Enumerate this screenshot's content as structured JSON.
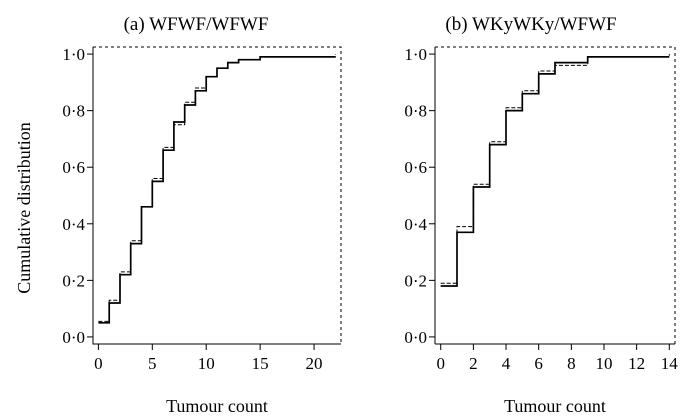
{
  "figure": {
    "ylabel": "Cumulative distribution",
    "xlabel": "Tumour count"
  },
  "chart_data": [
    {
      "type": "line",
      "title": "(a) WFWF/WFWF",
      "xlabel": "Tumour count",
      "ylabel": "Cumulative distribution",
      "xlim": [
        -0.5,
        22.5
      ],
      "ylim": [
        -0.025,
        1.025
      ],
      "xticks": [
        0,
        5,
        10,
        15,
        20
      ],
      "yticks": [
        0.0,
        0.2,
        0.4,
        0.6,
        0.8,
        1.0
      ],
      "ytick_labels": [
        "0·0",
        "0·2",
        "0·4",
        "0·6",
        "0·8",
        "1·0"
      ],
      "step": true,
      "series": [
        {
          "style": "solid",
          "x": [
            0,
            1,
            2,
            3,
            4,
            5,
            6,
            7,
            8,
            9,
            10,
            11,
            12,
            13,
            15,
            22
          ],
          "y": [
            0.05,
            0.12,
            0.22,
            0.33,
            0.46,
            0.55,
            0.66,
            0.76,
            0.82,
            0.87,
            0.92,
            0.95,
            0.97,
            0.98,
            0.99,
            0.99
          ]
        },
        {
          "style": "dashed",
          "x": [
            0,
            1,
            2,
            3,
            4,
            5,
            6,
            7,
            8,
            9,
            10,
            11,
            12,
            13,
            15,
            22
          ],
          "y": [
            0.055,
            0.13,
            0.23,
            0.34,
            0.46,
            0.56,
            0.67,
            0.75,
            0.83,
            0.88,
            0.92,
            0.95,
            0.97,
            0.98,
            0.99,
            1.0
          ]
        }
      ]
    },
    {
      "type": "line",
      "title": "(b) WKyWKy/WFWF",
      "xlabel": "Tumour count",
      "ylabel": "",
      "xlim": [
        -0.35,
        14.35
      ],
      "ylim": [
        -0.025,
        1.025
      ],
      "xticks": [
        0,
        2,
        4,
        6,
        8,
        10,
        12,
        14
      ],
      "yticks": [
        0.0,
        0.2,
        0.4,
        0.6,
        0.8,
        1.0
      ],
      "ytick_labels": [
        "0·0",
        "0·2",
        "0·4",
        "0·6",
        "0·8",
        "1·0"
      ],
      "step": true,
      "series": [
        {
          "style": "solid",
          "x": [
            0,
            1,
            2,
            3,
            4,
            5,
            6,
            7,
            9,
            14
          ],
          "y": [
            0.18,
            0.37,
            0.53,
            0.68,
            0.8,
            0.86,
            0.93,
            0.97,
            0.99,
            0.99
          ]
        },
        {
          "style": "dashed",
          "x": [
            0,
            1,
            2,
            3,
            4,
            5,
            6,
            7,
            9,
            14
          ],
          "y": [
            0.19,
            0.39,
            0.54,
            0.69,
            0.81,
            0.87,
            0.94,
            0.96,
            0.99,
            1.0
          ]
        }
      ]
    }
  ]
}
